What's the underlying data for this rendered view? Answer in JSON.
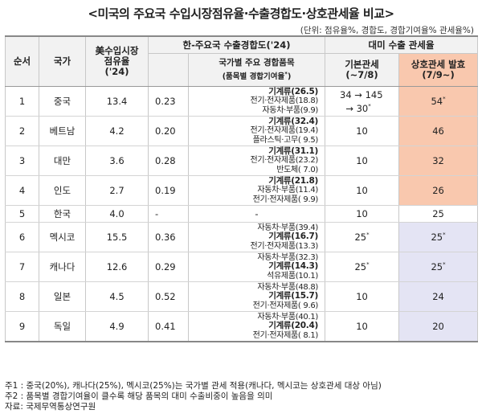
{
  "title": "<미국의 주요국 수입시장점유율·수출경합도·상호관세율 비교>",
  "unit_note": "(단위: 점유율%, 경합도, 경합기여율% 관세율%)",
  "headers": {
    "rank": "순서",
    "country": "국가",
    "share_line1": "美수입시장",
    "share_line2": "점유율",
    "share_line3": "('24)",
    "competition_group": "한-주요국 수출경합도('24",
    "competition_group_suffix": ")",
    "competition_value": "",
    "items_line1": "국가별 주요 경합품목",
    "items_line2": "(품목별 경합기여율",
    "items_line2_sup": "*",
    "items_line2_end": ")",
    "tariff_group": "대미 수출 관세율",
    "base_line1": "기본관세",
    "base_line2": "(~7/8)",
    "recip_line1": "상호관세 발효",
    "recip_line2": "(7/9~)"
  },
  "rows": [
    {
      "rank": "1",
      "country": "중국",
      "share": "13.4",
      "comp": "0.23",
      "items": [
        {
          "name": "기계류",
          "val": "(26.5)",
          "bold": true
        },
        {
          "name": "전기·전자제품",
          "val": "(18.8)",
          "bold": false
        },
        {
          "name": "자동차·부품",
          "val": "(9.9)",
          "bold": false
        }
      ],
      "base_a": "34 → 145",
      "base_b": "→ 30",
      "base_b_sup": "*",
      "recip": "54",
      "recip_sup": "*",
      "hl": "orange"
    },
    {
      "rank": "2",
      "country": "베트남",
      "share": "4.2",
      "comp": "0.20",
      "items": [
        {
          "name": "기계류",
          "val": "(32.4)",
          "bold": true
        },
        {
          "name": "전기·전자제품",
          "val": "(19.4)",
          "bold": false
        },
        {
          "name": "플라스틱·고무",
          "val": "( 9.5)",
          "bold": false
        }
      ],
      "base": "10",
      "recip": "46",
      "hl": "orange"
    },
    {
      "rank": "3",
      "country": "대만",
      "share": "3.6",
      "comp": "0.28",
      "items": [
        {
          "name": "기계류",
          "val": "(31.1)",
          "bold": true
        },
        {
          "name": "전기·전자제품",
          "val": "(23.2)",
          "bold": false
        },
        {
          "name": "반도체",
          "val": "( 7.0)",
          "bold": false
        }
      ],
      "base": "10",
      "recip": "32",
      "hl": "orange"
    },
    {
      "rank": "4",
      "country": "인도",
      "share": "2.7",
      "comp": "0.19",
      "items": [
        {
          "name": "기계류",
          "val": "(21.8)",
          "bold": true
        },
        {
          "name": "자동차·부품",
          "val": "(11.4)",
          "bold": false
        },
        {
          "name": "전기·전자제품",
          "val": "( 9.9)",
          "bold": false
        }
      ],
      "base": "10",
      "recip": "26",
      "hl": "orange"
    },
    {
      "rank": "5",
      "country": "한국",
      "share": "4.0",
      "comp": "-",
      "items_text": "-",
      "base": "10",
      "recip": "25",
      "hl": "none"
    },
    {
      "rank": "6",
      "country": "멕시코",
      "share": "15.5",
      "comp": "0.36",
      "items": [
        {
          "name": "자동차·부품",
          "val": "(39.4)",
          "bold": false
        },
        {
          "name": "기계류",
          "val": "(16.7)",
          "bold": true
        },
        {
          "name": "전기·전자제품",
          "val": "(13.3)",
          "bold": false
        }
      ],
      "base": "25",
      "base_sup": "*",
      "recip": "25",
      "recip_sup": "*",
      "hl": "lav"
    },
    {
      "rank": "7",
      "country": "캐나다",
      "share": "12.6",
      "comp": "0.29",
      "items": [
        {
          "name": "자동차·부품",
          "val": "(32.3)",
          "bold": false
        },
        {
          "name": "기계류",
          "val": "(14.3)",
          "bold": true
        },
        {
          "name": "석유제품",
          "val": "(10.1)",
          "bold": false
        }
      ],
      "base": "25",
      "base_sup": "*",
      "recip": "25",
      "recip_sup": "*",
      "hl": "lav"
    },
    {
      "rank": "8",
      "country": "일본",
      "share": "4.5",
      "comp": "0.52",
      "items": [
        {
          "name": "자동차·부품",
          "val": "(48.8)",
          "bold": false
        },
        {
          "name": "기계류",
          "val": "(15.7)",
          "bold": true
        },
        {
          "name": "전기·전자제품",
          "val": "( 9.6)",
          "bold": false
        }
      ],
      "base": "10",
      "recip": "24",
      "hl": "lav"
    },
    {
      "rank": "9",
      "country": "독일",
      "share": "4.9",
      "comp": "0.41",
      "items": [
        {
          "name": "자동차·부품",
          "val": "(40.1)",
          "bold": false
        },
        {
          "name": "기계류",
          "val": "(20.4)",
          "bold": true
        },
        {
          "name": "전기·전자제품",
          "val": "( 8.1)",
          "bold": false
        }
      ],
      "base": "10",
      "recip": "20",
      "hl": "lav"
    }
  ],
  "colors": {
    "orange": "#f9c8ae",
    "lavender": "#e4e4f4",
    "header_bg": "#f2f2f2"
  },
  "footnotes": [
    "주1 : 중국(20%), 캐나다(25%), 멕시코(25%)는 국가별 관세 적용(캐나다, 멕시코는 상호관세 대상 아님)",
    "주2 : 품목별 경합기여율이 클수록 해당 품목의 대미 수출비중이 높음을 의미",
    "자료: 국제무역통상연구원"
  ]
}
